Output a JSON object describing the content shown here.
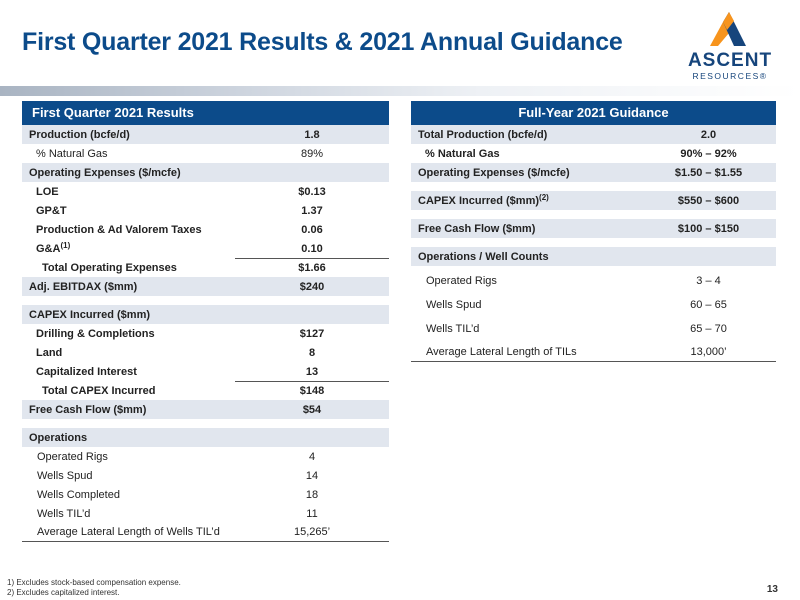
{
  "title": "First Quarter 2021 Results & 2021 Annual Guidance",
  "logo": {
    "word": "ASCENT",
    "sub": "RESOURCES®",
    "colors": [
      "#f7941d",
      "#16457c"
    ]
  },
  "left": {
    "header": "First Quarter 2021 Results",
    "production": {
      "label": "Production (bcfe/d)",
      "value": "1.8"
    },
    "natgas": {
      "label": "% Natural Gas",
      "value": "89%"
    },
    "opex_header": "Operating Expenses ($/mcfe)",
    "loe": {
      "label": "LOE",
      "value": "$0.13"
    },
    "gpt": {
      "label": "GP&T",
      "value": "1.37"
    },
    "taxes": {
      "label": "Production & Ad Valorem Taxes",
      "value": "0.06"
    },
    "ga": {
      "label": "G&A",
      "sup": "(1)",
      "value": "0.10"
    },
    "total_opex": {
      "label": "Total Operating Expenses",
      "value": "$1.66"
    },
    "ebitdax": {
      "label": "Adj. EBITDAX ($mm)",
      "value": "$240"
    },
    "capex_header": "CAPEX Incurred ($mm)",
    "drilling": {
      "label": "Drilling & Completions",
      "value": "$127"
    },
    "land": {
      "label": "Land",
      "value": "8"
    },
    "capint": {
      "label": "Capitalized Interest",
      "value": "13"
    },
    "total_capex": {
      "label": "Total CAPEX Incurred",
      "value": "$148"
    },
    "fcf": {
      "label": "Free Cash Flow ($mm)",
      "value": "$54"
    },
    "ops_header": "Operations",
    "ops": [
      {
        "label": "Operated Rigs",
        "value": "4"
      },
      {
        "label": "Wells Spud",
        "value": "14"
      },
      {
        "label": "Wells Completed",
        "value": "18"
      },
      {
        "label": "Wells TIL’d",
        "value": "11"
      },
      {
        "label": "Average Lateral Length of Wells TIL’d",
        "value": "15,265’"
      }
    ]
  },
  "right": {
    "header": "Full-Year 2021 Guidance",
    "production": {
      "label": "Total Production (bcfe/d)",
      "value": "2.0"
    },
    "natgas": {
      "label": "% Natural Gas",
      "value": "90% – 92%"
    },
    "opex": {
      "label": "Operating Expenses ($/mcfe)",
      "value": "$1.50 – $1.55"
    },
    "capex": {
      "label": "CAPEX Incurred ($mm)",
      "sup": "(2)",
      "value": "$550 – $600"
    },
    "fcf": {
      "label": "Free Cash Flow ($mm)",
      "value": "$100 – $150"
    },
    "ops_header": "Operations / Well Counts",
    "ops": [
      {
        "label": "Operated Rigs",
        "value": "3 – 4"
      },
      {
        "label": "Wells Spud",
        "value": "60 – 65"
      },
      {
        "label": "Wells TIL’d",
        "value": "65 – 70"
      },
      {
        "label": "Average Lateral Length of TILs",
        "value": "13,000’"
      }
    ]
  },
  "footnotes": [
    "1) Excludes stock-based compensation expense.",
    "2) Excludes capitalized interest."
  ],
  "page_number": "13"
}
